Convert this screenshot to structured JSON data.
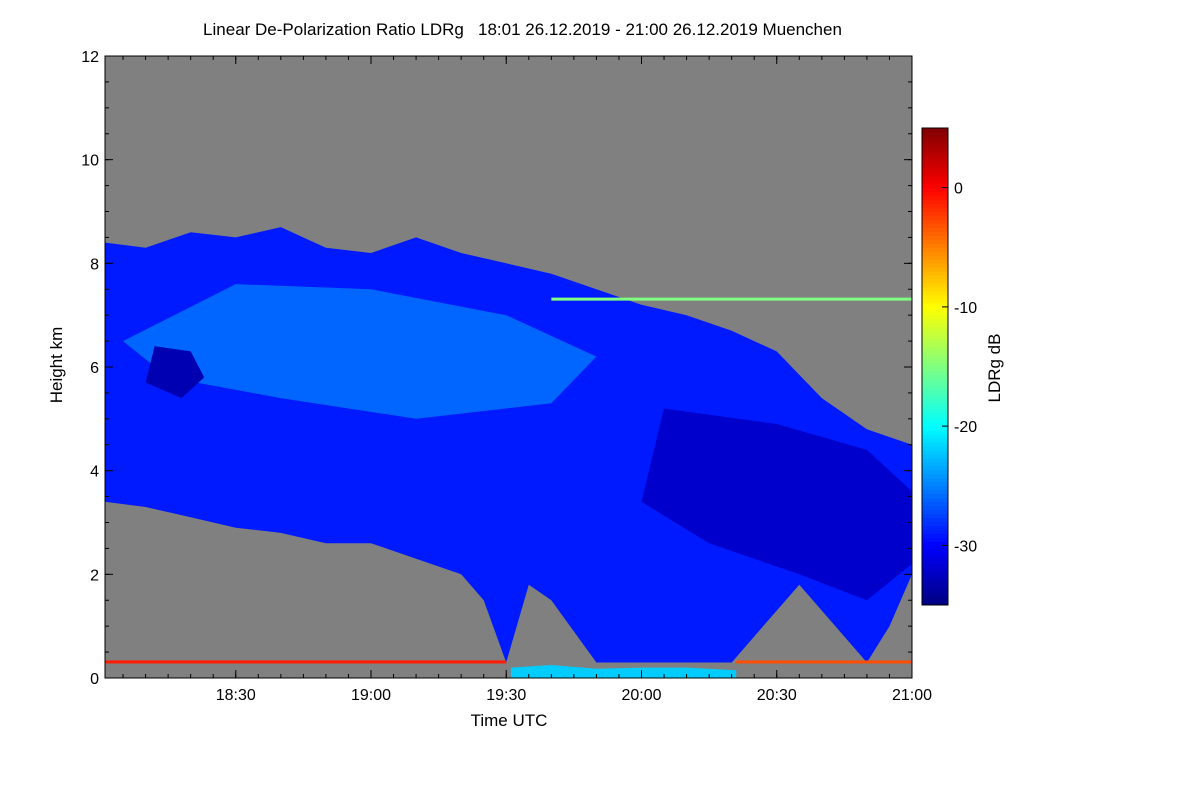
{
  "chart_data": {
    "type": "heatmap",
    "title": "Linear De-Polarization Ratio LDRg   18:01 26.12.2019 - 21:00 26.12.2019 Muenchen",
    "xlabel": "Time UTC",
    "ylabel": "Height km",
    "xlim": [
      "18:01",
      "21:00"
    ],
    "ylim": [
      0,
      12
    ],
    "x_ticks": [
      "18:30",
      "19:00",
      "19:30",
      "20:00",
      "20:30",
      "21:00"
    ],
    "y_ticks": [
      0,
      2,
      4,
      6,
      8,
      10,
      12
    ],
    "colorbar": {
      "label": "LDRg dB",
      "range": [
        -35,
        5
      ],
      "ticks": [
        0,
        -10,
        -20,
        -30
      ],
      "colors": [
        "#000080",
        "#0000ff",
        "#0080ff",
        "#00ffff",
        "#80ff80",
        "#ffff00",
        "#ff8000",
        "#ff0000",
        "#800000"
      ]
    },
    "colors": {
      "no_data": "#808080",
      "cloud_core": "#1e50f5",
      "cloud_light": "#3c78ff",
      "cloud_dark": "#1e28d2",
      "near_surface": "#00ffff",
      "surface_layer": "#ff3000"
    },
    "regions": [
      {
        "name": "cirrus-cloud",
        "value_db": -29,
        "points": [
          [
            "18:01",
            3.4
          ],
          [
            "18:01",
            8.4
          ],
          [
            "18:10",
            8.3
          ],
          [
            "18:20",
            8.6
          ],
          [
            "18:30",
            8.5
          ],
          [
            "18:40",
            8.7
          ],
          [
            "18:50",
            8.3
          ],
          [
            "19:00",
            8.2
          ],
          [
            "19:10",
            8.5
          ],
          [
            "19:20",
            8.2
          ],
          [
            "19:30",
            8.0
          ],
          [
            "19:40",
            7.8
          ],
          [
            "19:50",
            7.5
          ],
          [
            "20:00",
            7.2
          ],
          [
            "20:10",
            7.0
          ],
          [
            "20:20",
            6.7
          ],
          [
            "20:30",
            6.3
          ],
          [
            "20:40",
            5.4
          ],
          [
            "20:50",
            4.8
          ],
          [
            "21:00",
            4.5
          ],
          [
            "21:00",
            2.0
          ],
          [
            "20:55",
            1.0
          ],
          [
            "20:50",
            0.3
          ],
          [
            "20:40",
            1.3
          ],
          [
            "20:35",
            1.8
          ],
          [
            "20:30",
            1.3
          ],
          [
            "20:20",
            0.3
          ],
          [
            "20:10",
            0.3
          ],
          [
            "20:00",
            0.3
          ],
          [
            "19:50",
            0.3
          ],
          [
            "19:40",
            1.5
          ],
          [
            "19:35",
            1.8
          ],
          [
            "19:30",
            0.3
          ],
          [
            "19:25",
            1.5
          ],
          [
            "19:20",
            2.0
          ],
          [
            "19:10",
            2.3
          ],
          [
            "19:00",
            2.6
          ],
          [
            "18:50",
            2.6
          ],
          [
            "18:40",
            2.8
          ],
          [
            "18:30",
            2.9
          ],
          [
            "18:20",
            3.1
          ],
          [
            "18:10",
            3.3
          ]
        ]
      },
      {
        "name": "cloud-light-core",
        "value_db": -26,
        "points": [
          [
            "18:05",
            6.5
          ],
          [
            "18:30",
            7.6
          ],
          [
            "19:00",
            7.5
          ],
          [
            "19:30",
            7.0
          ],
          [
            "19:50",
            6.2
          ],
          [
            "19:40",
            5.3
          ],
          [
            "19:10",
            5.0
          ],
          [
            "18:40",
            5.4
          ],
          [
            "18:15",
            5.8
          ]
        ]
      },
      {
        "name": "cloud-dark-lower",
        "value_db": -32,
        "points": [
          [
            "20:05",
            5.2
          ],
          [
            "20:30",
            4.9
          ],
          [
            "20:50",
            4.4
          ],
          [
            "21:00",
            3.6
          ],
          [
            "21:00",
            2.2
          ],
          [
            "20:50",
            1.5
          ],
          [
            "20:35",
            2.0
          ],
          [
            "20:15",
            2.6
          ],
          [
            "20:00",
            3.4
          ]
        ]
      },
      {
        "name": "cloud-dark-patch",
        "value_db": -33,
        "points": [
          [
            "18:12",
            6.4
          ],
          [
            "18:20",
            6.3
          ],
          [
            "18:23",
            5.8
          ],
          [
            "18:18",
            5.4
          ],
          [
            "18:10",
            5.7
          ]
        ]
      },
      {
        "name": "near-surface-layer",
        "value_db": -22,
        "points": [
          [
            "19:31",
            0.2
          ],
          [
            "19:40",
            0.25
          ],
          [
            "19:50",
            0.18
          ],
          [
            "20:00",
            0.2
          ],
          [
            "20:10",
            0.2
          ],
          [
            "20:21",
            0.15
          ],
          [
            "20:21",
            0.0
          ],
          [
            "19:31",
            0.0
          ]
        ]
      }
    ],
    "layers": [
      {
        "name": "surface-layer",
        "height_km": 0.3,
        "value_db": -1,
        "x": [
          "18:01",
          "19:30"
        ]
      },
      {
        "name": "surface-layer-east",
        "height_km": 0.3,
        "value_db": -3,
        "x": [
          "20:21",
          "21:00"
        ]
      },
      {
        "name": "upper-streak",
        "height_km": 7.3,
        "value_db": -15,
        "x": [
          "19:40",
          "21:00"
        ]
      }
    ]
  }
}
